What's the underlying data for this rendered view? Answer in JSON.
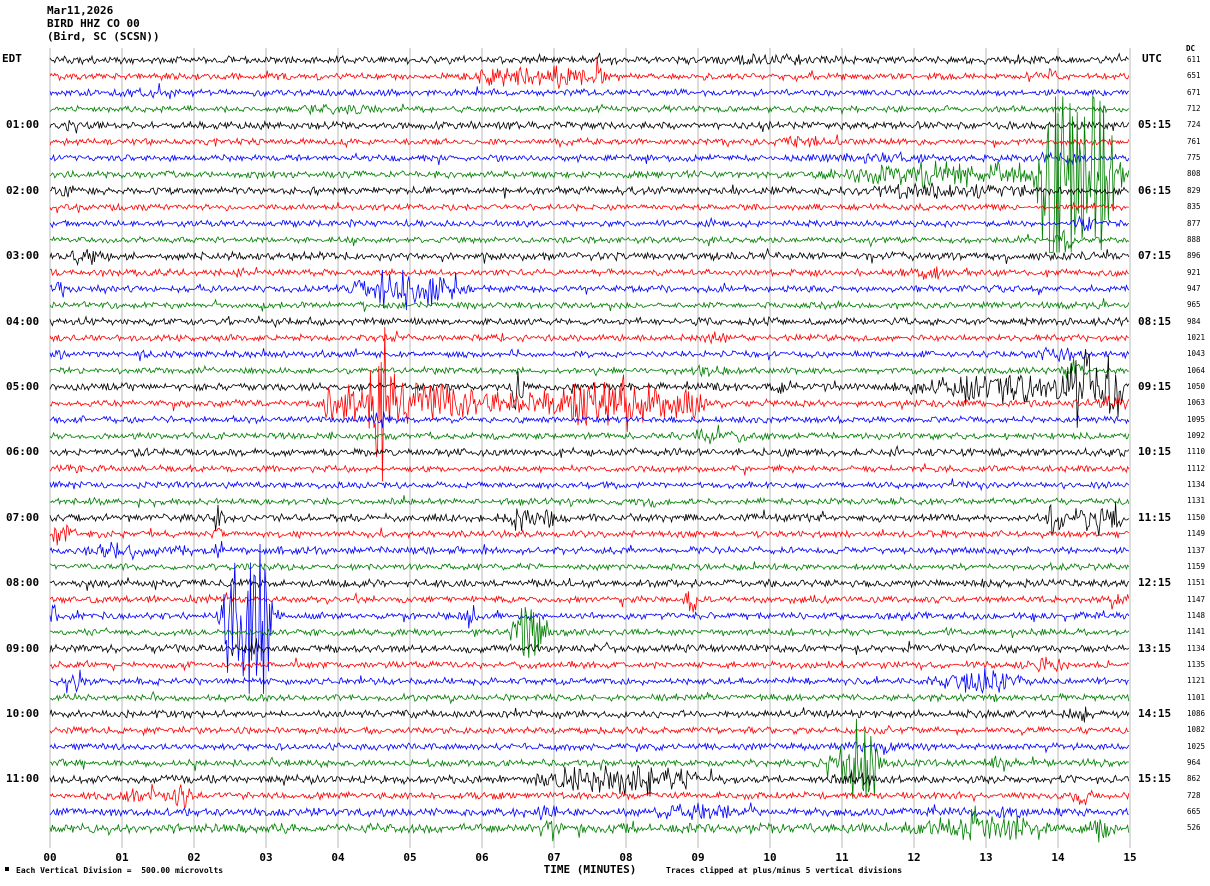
{
  "header": {
    "date": "Mar11,2026",
    "station": "BIRD HHZ CO 00",
    "location": "(Bird, SC (SCSN))"
  },
  "axes": {
    "left_label": "EDT",
    "right_label": "UTC",
    "right_col_label": "DC",
    "x_label": "TIME (MINUTES)",
    "x_ticks": [
      "00",
      "01",
      "02",
      "03",
      "04",
      "05",
      "06",
      "07",
      "08",
      "09",
      "10",
      "11",
      "12",
      "13",
      "14",
      "15"
    ]
  },
  "footer": {
    "left_note": "Each Vertical Division =  500.00 microvolts",
    "right_note": "Traces clipped at plus/minus 5 vertical divisions"
  },
  "chart_data": {
    "type": "line",
    "title": "BIRD HHZ CO 00 (Bird, SC (SCSN)) Mar11,2026",
    "xlabel": "TIME (MINUTES)",
    "x_range_minutes": [
      0,
      15
    ],
    "minutes_per_line": 15,
    "rows_per_hour": 4,
    "vertical_division": "500.00 microvolts",
    "clipping": "plus/minus 5 vertical divisions",
    "grid": true,
    "colors": {
      "black": "#000000",
      "red": "#ff0000",
      "blue": "#0000ff",
      "green": "#007f00"
    },
    "rows": [
      {
        "color": "black",
        "left": "",
        "right": "",
        "dc": "611",
        "base": 2.6,
        "events": [
          [
            10.0,
            2,
            0.5
          ]
        ]
      },
      {
        "color": "red",
        "left": "",
        "right": "",
        "dc": "651",
        "base": 2.4,
        "events": [
          [
            6.3,
            5,
            0.25
          ],
          [
            7.0,
            7,
            0.2
          ],
          [
            7.5,
            4,
            0.2
          ],
          [
            13.8,
            3,
            0.2
          ]
        ]
      },
      {
        "color": "blue",
        "left": "",
        "right": "",
        "dc": "671",
        "base": 2.2,
        "events": [
          [
            1.5,
            2,
            0.3
          ]
        ]
      },
      {
        "color": "green",
        "left": "",
        "right": "",
        "dc": "712",
        "base": 2.2,
        "events": [
          [
            4.0,
            2,
            0.3
          ]
        ]
      },
      {
        "color": "black",
        "left": "01:00",
        "right": "05:15",
        "dc": "724",
        "base": 2.6,
        "events": [
          [
            0.3,
            3,
            0.1
          ]
        ]
      },
      {
        "color": "red",
        "left": "",
        "right": "",
        "dc": "761",
        "base": 2.2,
        "events": [
          [
            10.5,
            2,
            0.3
          ]
        ]
      },
      {
        "color": "blue",
        "left": "",
        "right": "",
        "dc": "775",
        "base": 2.2,
        "events": [
          [
            11.5,
            3,
            0.4
          ],
          [
            14.0,
            3,
            0.2
          ]
        ]
      },
      {
        "color": "green",
        "left": "",
        "right": "",
        "dc": "808",
        "base": 2.4,
        "events": [
          [
            11.6,
            4,
            0.5
          ],
          [
            12.3,
            4,
            0.4
          ],
          [
            12.9,
            4,
            0.4
          ],
          [
            13.5,
            5,
            0.3
          ],
          [
            13.9,
            75,
            0.1
          ],
          [
            14.15,
            78,
            0.15
          ],
          [
            14.55,
            70,
            0.12
          ],
          [
            14.8,
            10,
            0.1
          ]
        ]
      },
      {
        "color": "black",
        "left": "02:00",
        "right": "06:15",
        "dc": "829",
        "base": 2.6,
        "events": [
          [
            0.25,
            7,
            0.06
          ],
          [
            12.0,
            3,
            0.5
          ],
          [
            13.2,
            3,
            0.3
          ]
        ]
      },
      {
        "color": "red",
        "left": "",
        "right": "",
        "dc": "835",
        "base": 2.2,
        "events": []
      },
      {
        "color": "blue",
        "left": "",
        "right": "",
        "dc": "877",
        "base": 2.2,
        "events": [
          [
            14.4,
            4,
            0.1
          ]
        ]
      },
      {
        "color": "green",
        "left": "",
        "right": "",
        "dc": "888",
        "base": 2.2,
        "events": [
          [
            14.1,
            6,
            0.08
          ]
        ]
      },
      {
        "color": "black",
        "left": "03:00",
        "right": "07:15",
        "dc": "896",
        "base": 2.8,
        "events": [
          [
            0.5,
            4,
            0.15
          ]
        ]
      },
      {
        "color": "red",
        "left": "",
        "right": "",
        "dc": "921",
        "base": 2.3,
        "events": [
          [
            12.2,
            4,
            0.15
          ]
        ]
      },
      {
        "color": "blue",
        "left": "",
        "right": "",
        "dc": "947",
        "base": 2.3,
        "events": [
          [
            0.15,
            5,
            0.06
          ],
          [
            4.7,
            9,
            0.3
          ],
          [
            5.1,
            7,
            0.25
          ],
          [
            5.4,
            5,
            0.2
          ]
        ]
      },
      {
        "color": "green",
        "left": "",
        "right": "",
        "dc": "965",
        "base": 2.2,
        "events": []
      },
      {
        "color": "black",
        "left": "04:00",
        "right": "08:15",
        "dc": "984",
        "base": 2.6,
        "events": []
      },
      {
        "color": "red",
        "left": "",
        "right": "",
        "dc": "1021",
        "base": 2.2,
        "events": [
          [
            9.3,
            3,
            0.15
          ]
        ]
      },
      {
        "color": "blue",
        "left": "",
        "right": "",
        "dc": "1043",
        "base": 2.2,
        "events": [
          [
            0.1,
            5,
            0.05
          ],
          [
            14.0,
            3,
            0.2
          ]
        ]
      },
      {
        "color": "green",
        "left": "",
        "right": "",
        "dc": "1064",
        "base": 2.2,
        "events": [
          [
            9.0,
            3,
            0.2
          ],
          [
            14.2,
            5,
            0.08
          ]
        ]
      },
      {
        "color": "black",
        "left": "05:00",
        "right": "09:15",
        "dc": "1050",
        "base": 2.6,
        "events": [
          [
            6.5,
            22,
            0.05
          ],
          [
            10.2,
            4,
            0.1
          ],
          [
            12.5,
            5,
            0.4
          ],
          [
            13.0,
            5,
            0.3
          ],
          [
            13.5,
            5,
            0.3
          ],
          [
            14.0,
            6,
            0.2
          ],
          [
            14.35,
            28,
            0.12
          ],
          [
            14.75,
            26,
            0.12
          ]
        ]
      },
      {
        "color": "red",
        "left": "",
        "right": "",
        "dc": "1063",
        "base": 2.4,
        "events": [
          [
            3.9,
            9,
            0.15
          ],
          [
            4.2,
            6,
            0.1
          ],
          [
            4.6,
            42,
            0.1
          ],
          [
            4.7,
            12,
            0.35
          ],
          [
            5.2,
            8,
            0.2
          ],
          [
            5.6,
            11,
            0.2
          ],
          [
            6.1,
            7,
            0.15
          ],
          [
            6.6,
            6,
            0.2
          ],
          [
            7.4,
            13,
            0.35
          ],
          [
            7.9,
            11,
            0.3
          ],
          [
            8.4,
            9,
            0.25
          ],
          [
            8.9,
            7,
            0.2
          ],
          [
            14.7,
            5,
            0.15
          ]
        ]
      },
      {
        "color": "blue",
        "left": "",
        "right": "",
        "dc": "1095",
        "base": 2.3,
        "events": [
          [
            4.6,
            3,
            0.1
          ]
        ]
      },
      {
        "color": "green",
        "left": "",
        "right": "",
        "dc": "1092",
        "base": 2.3,
        "events": [
          [
            9.3,
            3,
            0.3
          ]
        ]
      },
      {
        "color": "black",
        "left": "06:00",
        "right": "10:15",
        "dc": "1110",
        "base": 2.6,
        "events": []
      },
      {
        "color": "red",
        "left": "",
        "right": "",
        "dc": "1112",
        "base": 2.2,
        "events": [
          [
            0.3,
            4,
            0.08
          ]
        ]
      },
      {
        "color": "blue",
        "left": "",
        "right": "",
        "dc": "1134",
        "base": 2.2,
        "events": []
      },
      {
        "color": "green",
        "left": "",
        "right": "",
        "dc": "1131",
        "base": 2.2,
        "events": [
          [
            8.4,
            5,
            0.08
          ]
        ]
      },
      {
        "color": "black",
        "left": "07:00",
        "right": "11:15",
        "dc": "1150",
        "base": 2.6,
        "events": [
          [
            2.35,
            11,
            0.04
          ],
          [
            6.5,
            9,
            0.12
          ],
          [
            6.9,
            5,
            0.1
          ],
          [
            13.95,
            9,
            0.08
          ],
          [
            14.5,
            13,
            0.1
          ],
          [
            14.75,
            11,
            0.08
          ]
        ]
      },
      {
        "color": "red",
        "left": "",
        "right": "",
        "dc": "1149",
        "base": 2.3,
        "events": [
          [
            0.15,
            11,
            0.08
          ],
          [
            2.3,
            5,
            0.05
          ]
        ]
      },
      {
        "color": "blue",
        "left": "",
        "right": "",
        "dc": "1137",
        "base": 2.4,
        "events": [
          [
            1.0,
            3,
            0.5
          ],
          [
            2.35,
            5,
            0.06
          ]
        ]
      },
      {
        "color": "green",
        "left": "",
        "right": "",
        "dc": "1159",
        "base": 2.2,
        "events": []
      },
      {
        "color": "black",
        "left": "08:00",
        "right": "12:15",
        "dc": "1151",
        "base": 2.7,
        "events": []
      },
      {
        "color": "red",
        "left": "",
        "right": "",
        "dc": "1147",
        "base": 2.3,
        "events": [
          [
            8.9,
            9,
            0.06
          ],
          [
            14.8,
            5,
            0.1
          ]
        ]
      },
      {
        "color": "blue",
        "left": "",
        "right": "",
        "dc": "1148",
        "base": 2.4,
        "events": [
          [
            0.05,
            5,
            0.05
          ],
          [
            2.5,
            28,
            0.08
          ],
          [
            2.7,
            42,
            0.12
          ],
          [
            2.9,
            48,
            0.1
          ],
          [
            3.0,
            20,
            0.08
          ],
          [
            5.85,
            11,
            0.04
          ]
        ]
      },
      {
        "color": "green",
        "left": "",
        "right": "",
        "dc": "1141",
        "base": 2.3,
        "events": [
          [
            6.6,
            16,
            0.12
          ],
          [
            6.78,
            10,
            0.1
          ]
        ]
      },
      {
        "color": "black",
        "left": "09:00",
        "right": "13:15",
        "dc": "1134",
        "base": 2.7,
        "events": [
          [
            2.9,
            4,
            0.08
          ]
        ]
      },
      {
        "color": "red",
        "left": "",
        "right": "",
        "dc": "1135",
        "base": 2.3,
        "events": [
          [
            13.9,
            4,
            0.15
          ]
        ]
      },
      {
        "color": "blue",
        "left": "",
        "right": "",
        "dc": "1121",
        "base": 2.4,
        "events": [
          [
            0.3,
            7,
            0.08
          ],
          [
            12.6,
            5,
            0.25
          ],
          [
            13.0,
            7,
            0.15
          ],
          [
            13.3,
            4,
            0.1
          ]
        ]
      },
      {
        "color": "green",
        "left": "",
        "right": "",
        "dc": "1101",
        "base": 2.3,
        "events": []
      },
      {
        "color": "black",
        "left": "10:00",
        "right": "14:15",
        "dc": "1086",
        "base": 2.6,
        "events": [
          [
            14.3,
            4,
            0.1
          ]
        ]
      },
      {
        "color": "red",
        "left": "",
        "right": "",
        "dc": "1082",
        "base": 2.3,
        "events": []
      },
      {
        "color": "blue",
        "left": "",
        "right": "",
        "dc": "1025",
        "base": 2.3,
        "events": [
          [
            11.5,
            3,
            0.3
          ]
        ]
      },
      {
        "color": "green",
        "left": "",
        "right": "",
        "dc": "964",
        "base": 2.4,
        "events": [
          [
            11.0,
            8,
            0.15
          ],
          [
            11.2,
            22,
            0.12
          ],
          [
            11.35,
            16,
            0.1
          ],
          [
            13.2,
            4,
            0.1
          ]
        ]
      },
      {
        "color": "black",
        "left": "11:00",
        "right": "15:15",
        "dc": "862",
        "base": 2.8,
        "events": [
          [
            7.3,
            7,
            0.3
          ],
          [
            7.9,
            6,
            0.25
          ],
          [
            8.3,
            6,
            0.2
          ],
          [
            8.8,
            5,
            0.2
          ],
          [
            11.2,
            4,
            0.15
          ]
        ]
      },
      {
        "color": "red",
        "left": "",
        "right": "",
        "dc": "728",
        "base": 2.4,
        "events": [
          [
            1.2,
            4,
            0.3
          ],
          [
            1.85,
            7,
            0.08
          ],
          [
            14.3,
            5,
            0.1
          ]
        ]
      },
      {
        "color": "blue",
        "left": "",
        "right": "",
        "dc": "665",
        "base": 2.8,
        "events": [
          [
            6.9,
            7,
            0.07
          ],
          [
            9.0,
            3,
            0.4
          ],
          [
            13.3,
            4,
            0.1
          ]
        ]
      },
      {
        "color": "green",
        "left": "",
        "right": "",
        "dc": "526",
        "base": 3.2,
        "events": [
          [
            6.9,
            10,
            0.08
          ],
          [
            12.6,
            6,
            0.4
          ],
          [
            12.9,
            10,
            0.12
          ],
          [
            13.4,
            5,
            0.2
          ],
          [
            14.6,
            8,
            0.1
          ]
        ]
      }
    ]
  }
}
